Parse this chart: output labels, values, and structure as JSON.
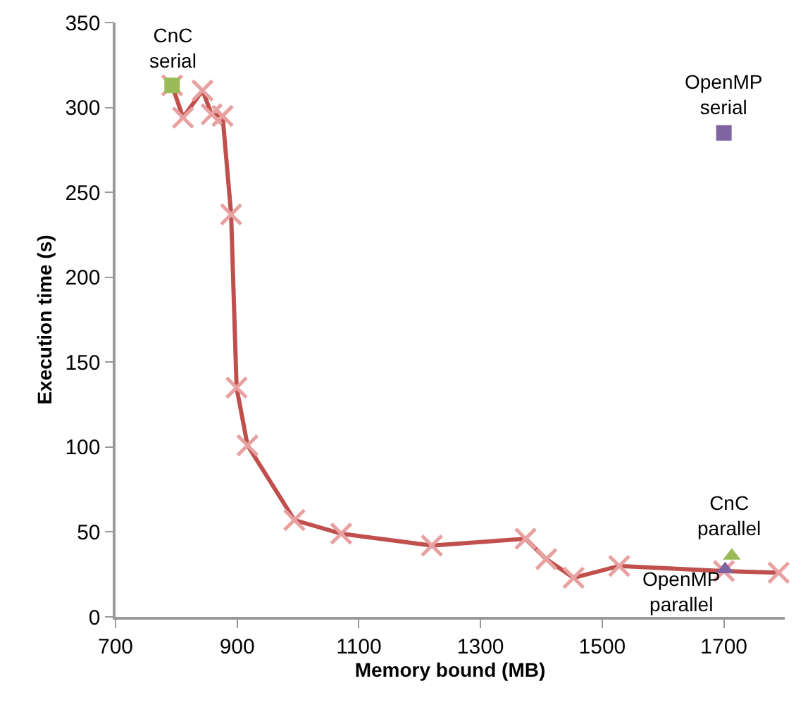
{
  "chart_data": {
    "type": "line",
    "xlabel": "Memory bound (MB)",
    "ylabel": "Execution time (s)",
    "xlim": [
      700,
      1800
    ],
    "xticks": [
      700,
      900,
      1100,
      1300,
      1500,
      1700
    ],
    "ylim": [
      0,
      350
    ],
    "yticks": [
      0,
      50,
      100,
      150,
      200,
      250,
      300,
      350
    ],
    "series": [
      {
        "color": "#c0504d",
        "marker": "cross",
        "x": [
          793,
          811,
          843,
          858,
          876,
          890,
          899,
          917,
          994,
          1071,
          1220,
          1374,
          1408,
          1453,
          1528,
          1700,
          1790
        ],
        "values": [
          313,
          294,
          310,
          296,
          295,
          237,
          135,
          101,
          57,
          49,
          42,
          46,
          34,
          23,
          30,
          27,
          26
        ]
      },
      {
        "type": "scatter",
        "color": "#9bbb59",
        "marker": "square",
        "x": [
          793
        ],
        "values": [
          313
        ]
      },
      {
        "type": "scatter",
        "color": "#8064a2",
        "marker": "square",
        "x": [
          1700
        ],
        "values": [
          285
        ]
      },
      {
        "type": "scatter",
        "color": "#9bbb59",
        "marker": "triangle",
        "x": [
          1713
        ],
        "values": [
          36
        ]
      },
      {
        "type": "scatter",
        "color": "#8064a2",
        "marker": "triangle",
        "x": [
          1702
        ],
        "values": [
          28
        ]
      }
    ],
    "annotations": [
      {
        "text": "CnC serial",
        "x": 793,
        "y": 313
      },
      {
        "text": "OpenMP serial",
        "x": 1700,
        "y": 285
      },
      {
        "text": "CnC parallel",
        "x": 1713,
        "y": 36
      },
      {
        "text": "OpenMP parallel",
        "x": 1702,
        "y": 28
      }
    ]
  }
}
